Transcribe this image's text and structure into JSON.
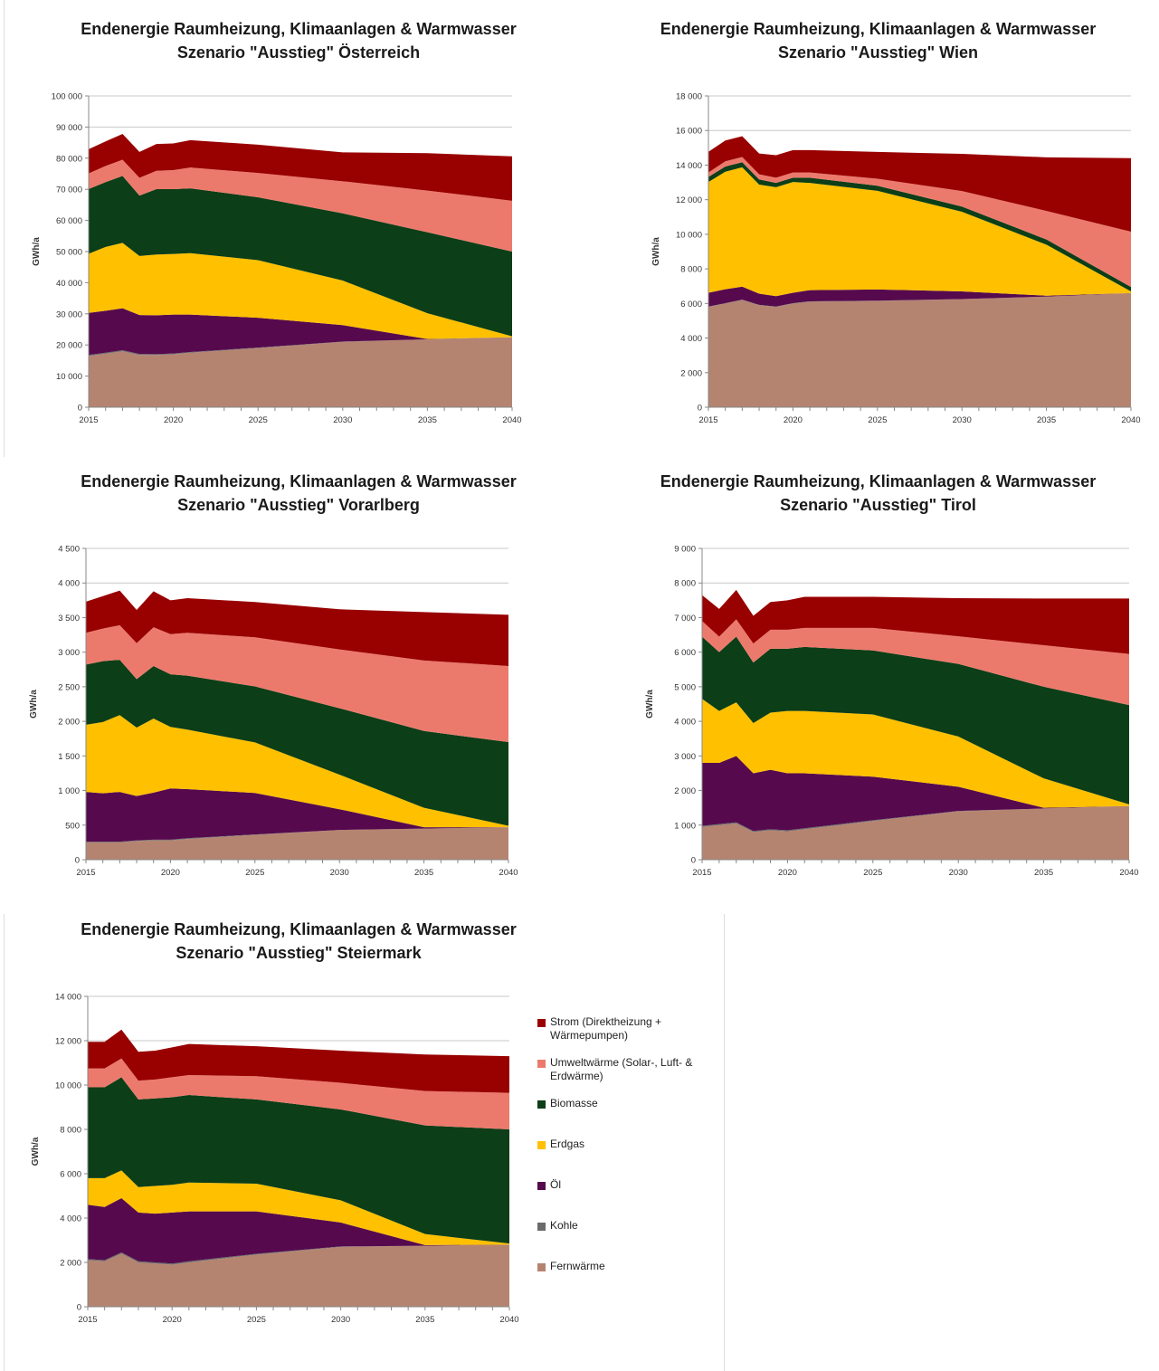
{
  "legend": {
    "items": [
      {
        "key": "strom",
        "label": "Strom (Direktheizung + Wärmepumpen)",
        "color": "#990000"
      },
      {
        "key": "umwelt",
        "label": "Umweltwärme (Solar-, Luft- & Erdwärme)",
        "color": "#ec7a6c"
      },
      {
        "key": "biomasse",
        "label": "Biomasse",
        "color": "#0c3e17"
      },
      {
        "key": "erdgas",
        "label": "Erdgas",
        "color": "#ffc000"
      },
      {
        "key": "oel",
        "label": "Öl",
        "color": "#560a4d"
      },
      {
        "key": "kohle",
        "label": "Kohle",
        "color": "#6b6b6b"
      },
      {
        "key": "fern",
        "label": "Fernwärme",
        "color": "#b58471"
      }
    ]
  },
  "chart_data": [
    {
      "type": "area",
      "stacked": true,
      "title": "Endenergie Raumheizung, Klimaanlagen & Warmwasser",
      "subtitle": "Szenario \"Ausstieg\" Österreich",
      "ylabel": "GWh/a",
      "ylim": [
        0,
        100000
      ],
      "yticks": [
        0,
        10000,
        20000,
        30000,
        40000,
        50000,
        60000,
        70000,
        80000,
        90000,
        100000
      ],
      "ytick_labels": [
        "0",
        "10 000",
        "20 000",
        "30 000",
        "40 000",
        "50 000",
        "60 000",
        "70 000",
        "80 000",
        "90 000",
        "100 000"
      ],
      "xlim": [
        2015,
        2040
      ],
      "xticks": [
        2015,
        2020,
        2025,
        2030,
        2035,
        2040
      ],
      "x": [
        2015,
        2016,
        2017,
        2018,
        2019,
        2020,
        2021,
        2025,
        2030,
        2035,
        2040
      ],
      "series": [
        {
          "name": "Fernwärme",
          "values": [
            16500,
            17200,
            18000,
            16800,
            16800,
            17000,
            17500,
            19000,
            21000,
            21800,
            22500
          ]
        },
        {
          "name": "Kohle",
          "values": [
            300,
            300,
            300,
            300,
            250,
            250,
            250,
            150,
            80,
            20,
            0
          ]
        },
        {
          "name": "Öl",
          "values": [
            13500,
            13500,
            13500,
            12500,
            12500,
            12500,
            12000,
            9600,
            5300,
            80,
            0
          ]
        },
        {
          "name": "Erdgas",
          "values": [
            19000,
            20500,
            21000,
            19000,
            19500,
            19500,
            19750,
            18500,
            14300,
            8300,
            300
          ]
        },
        {
          "name": "Biomasse",
          "values": [
            20800,
            20800,
            21500,
            19400,
            21000,
            20800,
            20800,
            20200,
            21600,
            26000,
            27200
          ]
        },
        {
          "name": "Umweltwärme",
          "values": [
            5000,
            5200,
            5200,
            5700,
            5900,
            6100,
            6700,
            7800,
            10300,
            13400,
            16300
          ]
        },
        {
          "name": "Strom",
          "values": [
            7800,
            7900,
            8300,
            8300,
            8600,
            8600,
            8800,
            9100,
            9300,
            12000,
            14300
          ]
        }
      ]
    },
    {
      "type": "area",
      "stacked": true,
      "title": "Endenergie Raumheizung, Klimaanlagen & Warmwasser",
      "subtitle": "Szenario \"Ausstieg\" Wien",
      "ylabel": "GWh/a",
      "ylim": [
        0,
        18000
      ],
      "yticks": [
        0,
        2000,
        4000,
        6000,
        8000,
        10000,
        12000,
        14000,
        16000,
        18000
      ],
      "ytick_labels": [
        "0",
        "2 000",
        "4 000",
        "6 000",
        "8 000",
        "10 000",
        "12 000",
        "14 000",
        "16 000",
        "18 000"
      ],
      "xlim": [
        2015,
        2040
      ],
      "xticks": [
        2015,
        2020,
        2025,
        2030,
        2035,
        2040
      ],
      "x": [
        2015,
        2016,
        2017,
        2018,
        2019,
        2020,
        2021,
        2025,
        2030,
        2035,
        2040
      ],
      "series": [
        {
          "name": "Fernwärme",
          "values": [
            5800,
            6000,
            6200,
            5900,
            5800,
            6000,
            6100,
            6150,
            6250,
            6400,
            6600
          ]
        },
        {
          "name": "Kohle",
          "values": [
            20,
            20,
            20,
            20,
            20,
            20,
            20,
            10,
            0,
            0,
            0
          ]
        },
        {
          "name": "Öl",
          "values": [
            800,
            800,
            750,
            650,
            600,
            600,
            650,
            650,
            450,
            50,
            0
          ]
        },
        {
          "name": "Erdgas",
          "values": [
            6400,
            6800,
            6900,
            6300,
            6300,
            6400,
            6200,
            5700,
            4600,
            2950,
            100
          ]
        },
        {
          "name": "Biomasse",
          "values": [
            300,
            300,
            300,
            300,
            250,
            250,
            300,
            300,
            300,
            300,
            250
          ]
        },
        {
          "name": "Umweltwärme",
          "values": [
            250,
            300,
            300,
            300,
            300,
            300,
            300,
            400,
            900,
            1650,
            3200
          ]
        },
        {
          "name": "Strom",
          "values": [
            1200,
            1200,
            1200,
            1200,
            1300,
            1300,
            1300,
            1550,
            2150,
            3100,
            4250
          ]
        }
      ]
    },
    {
      "type": "area",
      "stacked": true,
      "title": "Endenergie Raumheizung, Klimaanlagen & Warmwasser",
      "subtitle": "Szenario \"Ausstieg\" Vorarlberg",
      "ylabel": "GWh/a",
      "ylim": [
        0,
        4500
      ],
      "yticks": [
        0,
        500,
        1000,
        1500,
        2000,
        2500,
        3000,
        3500,
        4000,
        4500
      ],
      "ytick_labels": [
        "0",
        "500",
        "1 000",
        "1 500",
        "2 000",
        "2 500",
        "3 000",
        "3 500",
        "4 000",
        "4 500"
      ],
      "xlim": [
        2015,
        2040
      ],
      "xticks": [
        2015,
        2020,
        2025,
        2030,
        2035,
        2040
      ],
      "x": [
        2015,
        2016,
        2017,
        2018,
        2019,
        2020,
        2021,
        2025,
        2030,
        2035,
        2040
      ],
      "series": [
        {
          "name": "Fernwärme",
          "values": [
            250,
            250,
            250,
            270,
            280,
            280,
            300,
            360,
            430,
            450,
            470
          ]
        },
        {
          "name": "Kohle",
          "values": [
            10,
            10,
            10,
            10,
            10,
            10,
            10,
            5,
            0,
            0,
            0
          ]
        },
        {
          "name": "Öl",
          "values": [
            720,
            700,
            720,
            640,
            680,
            740,
            710,
            600,
            300,
            20,
            0
          ]
        },
        {
          "name": "Erdgas",
          "values": [
            970,
            1030,
            1110,
            990,
            1070,
            890,
            860,
            730,
            500,
            280,
            20
          ]
        },
        {
          "name": "Biomasse",
          "values": [
            870,
            880,
            800,
            700,
            760,
            760,
            780,
            810,
            960,
            1110,
            1210
          ]
        },
        {
          "name": "Umweltwärme",
          "values": [
            460,
            470,
            500,
            520,
            560,
            580,
            620,
            710,
            850,
            1020,
            1100
          ]
        },
        {
          "name": "Strom",
          "values": [
            450,
            470,
            500,
            480,
            520,
            490,
            500,
            510,
            580,
            700,
            740
          ]
        }
      ]
    },
    {
      "type": "area",
      "stacked": true,
      "title": "Endenergie Raumheizung, Klimaanlagen & Warmwasser",
      "subtitle": "Szenario \"Ausstieg\" Tirol",
      "ylabel": "GWh/a",
      "ylim": [
        0,
        9000
      ],
      "yticks": [
        0,
        1000,
        2000,
        3000,
        4000,
        5000,
        6000,
        7000,
        8000,
        9000
      ],
      "ytick_labels": [
        "0",
        "1 000",
        "2 000",
        "3 000",
        "4 000",
        "5 000",
        "6 000",
        "7 000",
        "8 000",
        "9 000"
      ],
      "xlim": [
        2015,
        2040
      ],
      "xticks": [
        2015,
        2020,
        2025,
        2030,
        2035,
        2040
      ],
      "x": [
        2015,
        2016,
        2017,
        2018,
        2019,
        2020,
        2021,
        2025,
        2030,
        2035,
        2040
      ],
      "series": [
        {
          "name": "Fernwärme",
          "values": [
            950,
            1000,
            1050,
            800,
            850,
            820,
            880,
            1120,
            1400,
            1480,
            1550
          ]
        },
        {
          "name": "Kohle",
          "values": [
            30,
            30,
            30,
            30,
            30,
            30,
            30,
            20,
            10,
            0,
            0
          ]
        },
        {
          "name": "Öl",
          "values": [
            1820,
            1770,
            1920,
            1670,
            1720,
            1650,
            1590,
            1260,
            700,
            20,
            0
          ]
        },
        {
          "name": "Erdgas",
          "values": [
            1850,
            1500,
            1550,
            1450,
            1650,
            1800,
            1800,
            1800,
            1450,
            850,
            50
          ]
        },
        {
          "name": "Biomasse",
          "values": [
            1800,
            1700,
            1900,
            1750,
            1850,
            1800,
            1850,
            1850,
            2100,
            2650,
            2870
          ]
        },
        {
          "name": "Umweltwärme",
          "values": [
            450,
            450,
            500,
            550,
            550,
            550,
            550,
            650,
            800,
            1200,
            1480
          ]
        },
        {
          "name": "Strom",
          "values": [
            750,
            800,
            850,
            800,
            800,
            850,
            900,
            900,
            1100,
            1350,
            1600
          ]
        }
      ]
    },
    {
      "type": "area",
      "stacked": true,
      "title": "Endenergie Raumheizung, Klimaanlagen & Warmwasser",
      "subtitle": "Szenario \"Ausstieg\" Steiermark",
      "ylabel": "GWh/a",
      "ylim": [
        0,
        14000
      ],
      "yticks": [
        0,
        2000,
        4000,
        6000,
        8000,
        10000,
        12000,
        14000
      ],
      "ytick_labels": [
        "0",
        "2 000",
        "4 000",
        "6 000",
        "8 000",
        "10 000",
        "12 000",
        "14 000"
      ],
      "xlim": [
        2015,
        2040
      ],
      "xticks": [
        2015,
        2020,
        2025,
        2030,
        2035,
        2040
      ],
      "x": [
        2015,
        2016,
        2017,
        2018,
        2019,
        2020,
        2021,
        2025,
        2030,
        2035,
        2040
      ],
      "series": [
        {
          "name": "Fernwärme",
          "values": [
            2100,
            2050,
            2400,
            2000,
            1950,
            1900,
            2000,
            2350,
            2700,
            2750,
            2800
          ]
        },
        {
          "name": "Kohle",
          "values": [
            50,
            50,
            50,
            50,
            50,
            50,
            50,
            40,
            20,
            0,
            0
          ]
        },
        {
          "name": "Öl",
          "values": [
            2450,
            2400,
            2450,
            2200,
            2200,
            2300,
            2250,
            1910,
            1080,
            30,
            0
          ]
        },
        {
          "name": "Erdgas",
          "values": [
            1200,
            1300,
            1250,
            1150,
            1250,
            1250,
            1300,
            1250,
            1000,
            500,
            50
          ]
        },
        {
          "name": "Biomasse",
          "values": [
            4100,
            4100,
            4200,
            3950,
            3950,
            3950,
            3950,
            3800,
            4100,
            4900,
            5150
          ]
        },
        {
          "name": "Umweltwärme",
          "values": [
            850,
            850,
            850,
            850,
            850,
            900,
            900,
            1050,
            1200,
            1550,
            1650
          ]
        },
        {
          "name": "Strom",
          "values": [
            1200,
            1200,
            1300,
            1300,
            1300,
            1350,
            1400,
            1350,
            1450,
            1650,
            1650
          ]
        }
      ]
    }
  ]
}
